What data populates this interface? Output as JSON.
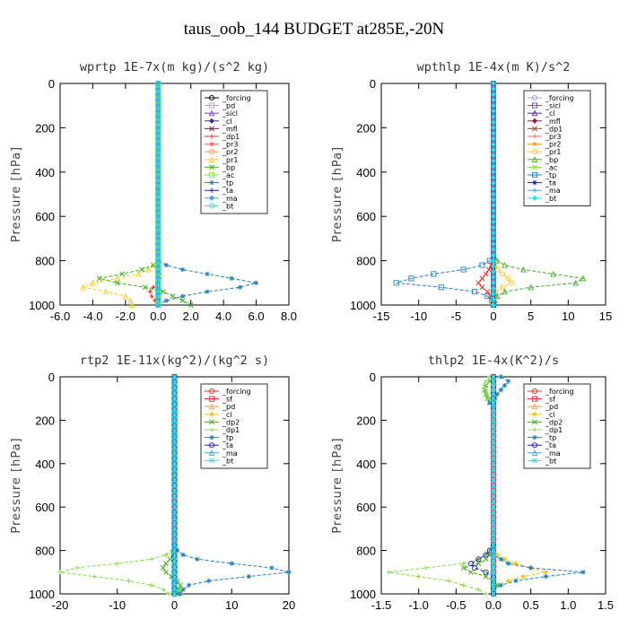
{
  "figure_title": "taus_oob_144  BUDGET at285E,-20N",
  "chart_data": [
    {
      "type": "line",
      "title": "wprtp   1E-7x(m kg)/(s^2 kg)",
      "ylabel": "Pressure [hPa]",
      "xlim": [
        -6.0,
        8.0
      ],
      "ylim": [
        1000,
        0
      ],
      "xticks": [
        "-6.0",
        "-4.0",
        "-2.0",
        "0.0",
        "2.0",
        "4.0",
        "6.0",
        "8.0"
      ],
      "yticks": [
        "0",
        "200",
        "400",
        "600",
        "800",
        "1000"
      ],
      "y": [
        800,
        820,
        840,
        860,
        880,
        900,
        920,
        940,
        960,
        980,
        1000
      ],
      "series": [
        {
          "name": "_forcing",
          "color": "#000000",
          "values": [
            0,
            0,
            0,
            0,
            0,
            0,
            0,
            0,
            0,
            0,
            0
          ]
        },
        {
          "name": "_pd",
          "color": "#b09ad0",
          "values": [
            0,
            0,
            0,
            0,
            0,
            0,
            0,
            0,
            0,
            0,
            0
          ]
        },
        {
          "name": "_sicl",
          "color": "#8040c0",
          "values": [
            0,
            0,
            0,
            0,
            0,
            0,
            0,
            0,
            0,
            0,
            0
          ]
        },
        {
          "name": "_cl",
          "color": "#5020a0",
          "values": [
            0,
            0,
            0,
            0,
            0,
            0,
            0,
            0,
            0,
            0,
            0
          ]
        },
        {
          "name": "_mfl",
          "color": "#a01040",
          "values": [
            0,
            0,
            0,
            0,
            0,
            0,
            0,
            0,
            0,
            0,
            0
          ]
        },
        {
          "name": "_dp1",
          "color": "#e03020",
          "values": [
            0,
            0,
            0.05,
            0.1,
            0.1,
            0,
            -0.3,
            -0.5,
            -0.4,
            -0.2,
            0
          ]
        },
        {
          "name": "_pr3",
          "color": "#ff6060",
          "values": [
            0,
            0,
            0,
            0,
            0,
            0,
            0,
            0,
            0,
            0,
            0
          ]
        },
        {
          "name": "_pr2",
          "color": "#ff9a30",
          "values": [
            0,
            0,
            0,
            0,
            0,
            0,
            0,
            0,
            0,
            0,
            0
          ]
        },
        {
          "name": "_pr1",
          "color": "#ffc820",
          "values": [
            0,
            -0.2,
            -0.6,
            -1.2,
            -2.5,
            -4.0,
            -4.6,
            -3.2,
            -2.0,
            -1.7,
            -1.6
          ]
        },
        {
          "name": "_bp",
          "color": "#40b020",
          "values": [
            0,
            -0.3,
            -1.0,
            -2.2,
            -3.6,
            -2.5,
            -0.8,
            0.3,
            0.9,
            1.5,
            2.0
          ]
        },
        {
          "name": "_ac",
          "color": "#80e040",
          "values": [
            0,
            0,
            0,
            0,
            0,
            0,
            0,
            0,
            0,
            0,
            0
          ]
        },
        {
          "name": "_tp",
          "color": "#2080c0",
          "values": [
            0,
            0.5,
            1.5,
            3.0,
            4.5,
            6.0,
            5.0,
            3.0,
            1.5,
            0.5,
            0
          ]
        },
        {
          "name": "_ta",
          "color": "#2020c0",
          "values": [
            0,
            0,
            0,
            0,
            0,
            0,
            0,
            0,
            0,
            0,
            0
          ]
        },
        {
          "name": "_ma",
          "color": "#40a0e0",
          "values": [
            0,
            0,
            0,
            0,
            0,
            0,
            0,
            0,
            0,
            0,
            0
          ]
        },
        {
          "name": "_bt",
          "color": "#20e0f0",
          "values": [
            0,
            0,
            0,
            0,
            0,
            0,
            0,
            0,
            0,
            0,
            0
          ]
        }
      ]
    },
    {
      "type": "line",
      "title": "wpthlp   1E-4x(m K)/s^2",
      "ylabel": "Pressure [hPa]",
      "xlim": [
        -15,
        15
      ],
      "ylim": [
        1000,
        0
      ],
      "xticks": [
        "-15",
        "-10",
        "-5",
        "0",
        "5",
        "10",
        "15"
      ],
      "yticks": [
        "0",
        "200",
        "400",
        "600",
        "800",
        "1000"
      ],
      "y": [
        780,
        800,
        820,
        840,
        860,
        880,
        900,
        920,
        940,
        960,
        980,
        1000
      ],
      "series": [
        {
          "name": "_forcing",
          "color": "#b09ad0",
          "values": [
            0,
            0,
            0,
            0,
            0,
            0,
            0,
            0,
            0,
            0,
            0,
            0
          ]
        },
        {
          "name": "_sicl",
          "color": "#8040c0",
          "values": [
            0,
            0,
            0,
            0,
            0,
            0,
            0,
            0,
            0,
            0,
            0,
            0
          ]
        },
        {
          "name": "_cl",
          "color": "#5020a0",
          "values": [
            0,
            0,
            0,
            0,
            0,
            0,
            0,
            0,
            0,
            0,
            0,
            0
          ]
        },
        {
          "name": "_mfl",
          "color": "#a01040",
          "values": [
            0,
            0,
            0,
            0,
            0,
            0,
            0,
            0,
            0,
            0,
            0,
            0
          ]
        },
        {
          "name": "_dp1",
          "color": "#e03020",
          "values": [
            0,
            0,
            -0.3,
            -0.6,
            -1.0,
            -1.5,
            -2.0,
            -1.5,
            -0.8,
            -0.4,
            -0.1,
            0
          ]
        },
        {
          "name": "_pr3",
          "color": "#ff6060",
          "values": [
            0,
            0,
            0,
            0,
            0,
            0,
            0,
            0,
            0,
            0,
            0,
            0
          ]
        },
        {
          "name": "_pr2",
          "color": "#ff9a30",
          "values": [
            0,
            0,
            0,
            0,
            0,
            0,
            0,
            0,
            0,
            0,
            0,
            0
          ]
        },
        {
          "name": "_pr1",
          "color": "#ffc820",
          "values": [
            0,
            0,
            0.2,
            0.6,
            1.2,
            2.0,
            2.4,
            1.2,
            0.2,
            -0.3,
            -0.2,
            0
          ]
        },
        {
          "name": "_bp",
          "color": "#40b020",
          "values": [
            0,
            0.5,
            1.5,
            4.0,
            8.0,
            12.0,
            11.0,
            5.0,
            1.5,
            0.5,
            0.2,
            0
          ]
        },
        {
          "name": "_ac",
          "color": "#80e040",
          "values": [
            0,
            0,
            0,
            0,
            0,
            0,
            0,
            0,
            0,
            0,
            0,
            0
          ]
        },
        {
          "name": "_tp",
          "color": "#2080c0",
          "values": [
            0,
            -0.5,
            -1.5,
            -4.0,
            -8.0,
            -11.0,
            -13.0,
            -7.0,
            -2.5,
            -0.8,
            -0.2,
            0
          ]
        },
        {
          "name": "_ta",
          "color": "#2020c0",
          "values": [
            0,
            0,
            0,
            0,
            0,
            0,
            0,
            0,
            0,
            0,
            0,
            0
          ]
        },
        {
          "name": "_ma",
          "color": "#40a0e0",
          "values": [
            0,
            0,
            0,
            0,
            0,
            0,
            0,
            0,
            0,
            0,
            0,
            0
          ]
        },
        {
          "name": "_bt",
          "color": "#20e0f0",
          "values": [
            0,
            0,
            0,
            0,
            0,
            0,
            0,
            0,
            0,
            0,
            0,
            0
          ]
        }
      ]
    },
    {
      "type": "line",
      "title": "rtp2   1E-11x(kg^2)/(kg^2 s)",
      "ylabel": "Pressure [hPa]",
      "xlim": [
        -20,
        20
      ],
      "ylim": [
        1000,
        0
      ],
      "xticks": [
        "-20",
        "-10",
        "0",
        "10",
        "20"
      ],
      "yticks": [
        "0",
        "200",
        "400",
        "600",
        "800",
        "1000"
      ],
      "y": [
        780,
        800,
        820,
        840,
        860,
        880,
        900,
        920,
        940,
        960,
        980,
        1000
      ],
      "series": [
        {
          "name": "_forcing",
          "color": "#e03020",
          "values": [
            0,
            0,
            0,
            0,
            0,
            0,
            0,
            0,
            0,
            0,
            0,
            0
          ]
        },
        {
          "name": "_sf",
          "color": "#ff2020",
          "values": [
            0,
            0,
            0,
            0,
            0,
            0,
            0,
            0,
            0,
            0,
            0,
            0
          ]
        },
        {
          "name": "_pd",
          "color": "#ff9a30",
          "values": [
            0,
            0,
            0,
            0,
            0,
            0,
            0,
            0,
            0,
            0,
            0,
            0
          ]
        },
        {
          "name": "_cl",
          "color": "#ffc820",
          "values": [
            0,
            0,
            0,
            0,
            0,
            0,
            0,
            0,
            0,
            0,
            0,
            0
          ]
        },
        {
          "name": "_dp2",
          "color": "#40b020",
          "values": [
            0,
            0,
            -0.3,
            -0.8,
            -1.5,
            -2.0,
            -1.5,
            -0.5,
            0.5,
            1.0,
            0.8,
            0.5
          ]
        },
        {
          "name": "_dp1",
          "color": "#80e040",
          "values": [
            0,
            -0.5,
            -1.5,
            -4.0,
            -10.0,
            -17.0,
            -20.0,
            -14.0,
            -8.0,
            -4.0,
            -2.0,
            -1.0
          ]
        },
        {
          "name": "_tp",
          "color": "#2080c0",
          "values": [
            0,
            0.5,
            1.5,
            4.0,
            10.0,
            17.0,
            20.0,
            13.0,
            6.0,
            2.5,
            1.5,
            1.0
          ]
        },
        {
          "name": "_ta",
          "color": "#2020c0",
          "values": [
            0,
            0,
            0,
            0,
            0,
            0,
            0,
            0,
            0,
            0,
            0,
            0
          ]
        },
        {
          "name": "_ma",
          "color": "#40a0e0",
          "values": [
            0,
            0,
            0,
            0,
            0,
            0,
            0,
            0,
            0,
            0,
            0,
            0
          ]
        },
        {
          "name": "_bt",
          "color": "#20e0f0",
          "values": [
            0,
            0,
            0,
            0,
            0,
            0,
            0,
            0,
            0,
            0,
            0,
            0
          ]
        }
      ]
    },
    {
      "type": "line",
      "title": "thlp2   1E-4x(K^2)/s",
      "ylabel": "Pressure [hPa]",
      "xlim": [
        -1.5,
        1.5
      ],
      "ylim": [
        1000,
        0
      ],
      "xticks": [
        "-1.5",
        "-1.0",
        "-0.5",
        "0.0",
        "0.5",
        "1.0",
        "1.5"
      ],
      "yticks": [
        "0",
        "200",
        "400",
        "600",
        "800",
        "1000"
      ],
      "y": [
        0,
        20,
        40,
        60,
        80,
        100,
        120,
        140,
        780,
        800,
        820,
        840,
        860,
        880,
        900,
        920,
        940,
        960,
        980,
        1000
      ],
      "series": [
        {
          "name": "_forcing",
          "color": "#e03020",
          "values": [
            0,
            0,
            0,
            0,
            0,
            0,
            0,
            0,
            0,
            0,
            0,
            0,
            0,
            0,
            0,
            0,
            0,
            0,
            0,
            0
          ]
        },
        {
          "name": "_sf",
          "color": "#ff2020",
          "values": [
            0,
            0,
            0,
            0,
            0,
            0,
            0,
            0,
            0,
            0,
            0,
            0,
            0,
            0,
            0,
            0,
            0,
            0,
            0,
            0
          ]
        },
        {
          "name": "_pd",
          "color": "#ff9a30",
          "values": [
            0,
            0,
            0,
            0,
            0,
            0,
            0,
            0,
            0,
            0,
            0,
            0,
            0,
            0,
            0,
            0,
            0,
            0,
            0,
            0
          ]
        },
        {
          "name": "_cl",
          "color": "#ffc820",
          "values": [
            0,
            0,
            0,
            0,
            0,
            0,
            0,
            0,
            0,
            0,
            0.05,
            0.15,
            0.3,
            0.5,
            0.7,
            0.4,
            0.2,
            0.05,
            0,
            0
          ]
        },
        {
          "name": "_dp2",
          "color": "#40b020",
          "values": [
            0,
            -0.05,
            -0.1,
            -0.12,
            -0.1,
            -0.08,
            -0.05,
            0,
            0,
            0,
            -0.05,
            -0.1,
            -0.2,
            -0.4,
            -0.3,
            -0.1,
            0,
            0.05,
            0,
            0
          ]
        },
        {
          "name": "_dp1",
          "color": "#80e040",
          "values": [
            -0.05,
            -0.1,
            -0.12,
            -0.1,
            -0.08,
            -0.05,
            -0.02,
            0,
            0,
            -0.05,
            -0.1,
            -0.2,
            -0.4,
            -0.9,
            -1.4,
            -1.0,
            -0.6,
            -0.4,
            -0.2,
            -0.1
          ]
        },
        {
          "name": "_tp",
          "color": "#2080c0",
          "values": [
            0.1,
            0.2,
            0.15,
            0.1,
            0.05,
            0.02,
            -0.05,
            0,
            0,
            0,
            0,
            0.1,
            0.2,
            0.5,
            1.2,
            0.7,
            0.3,
            0.1,
            0,
            0
          ]
        },
        {
          "name": "_ta",
          "color": "#2020c0",
          "values": [
            0,
            0,
            0,
            0,
            0,
            0,
            0,
            0,
            0,
            -0.05,
            -0.1,
            -0.2,
            -0.3,
            -0.25,
            -0.1,
            0,
            0,
            0,
            0,
            0
          ]
        },
        {
          "name": "_ma",
          "color": "#40a0e0",
          "values": [
            0,
            0,
            0,
            0,
            0,
            0,
            0,
            0,
            0,
            0,
            0,
            0,
            0,
            0,
            0,
            0,
            0,
            0,
            0,
            0
          ]
        },
        {
          "name": "_bt",
          "color": "#20e0f0",
          "values": [
            0,
            0,
            0,
            0,
            0,
            0,
            0,
            0,
            0,
            0,
            0,
            0,
            0,
            0,
            0,
            0,
            0,
            0,
            0,
            0
          ]
        }
      ]
    }
  ]
}
